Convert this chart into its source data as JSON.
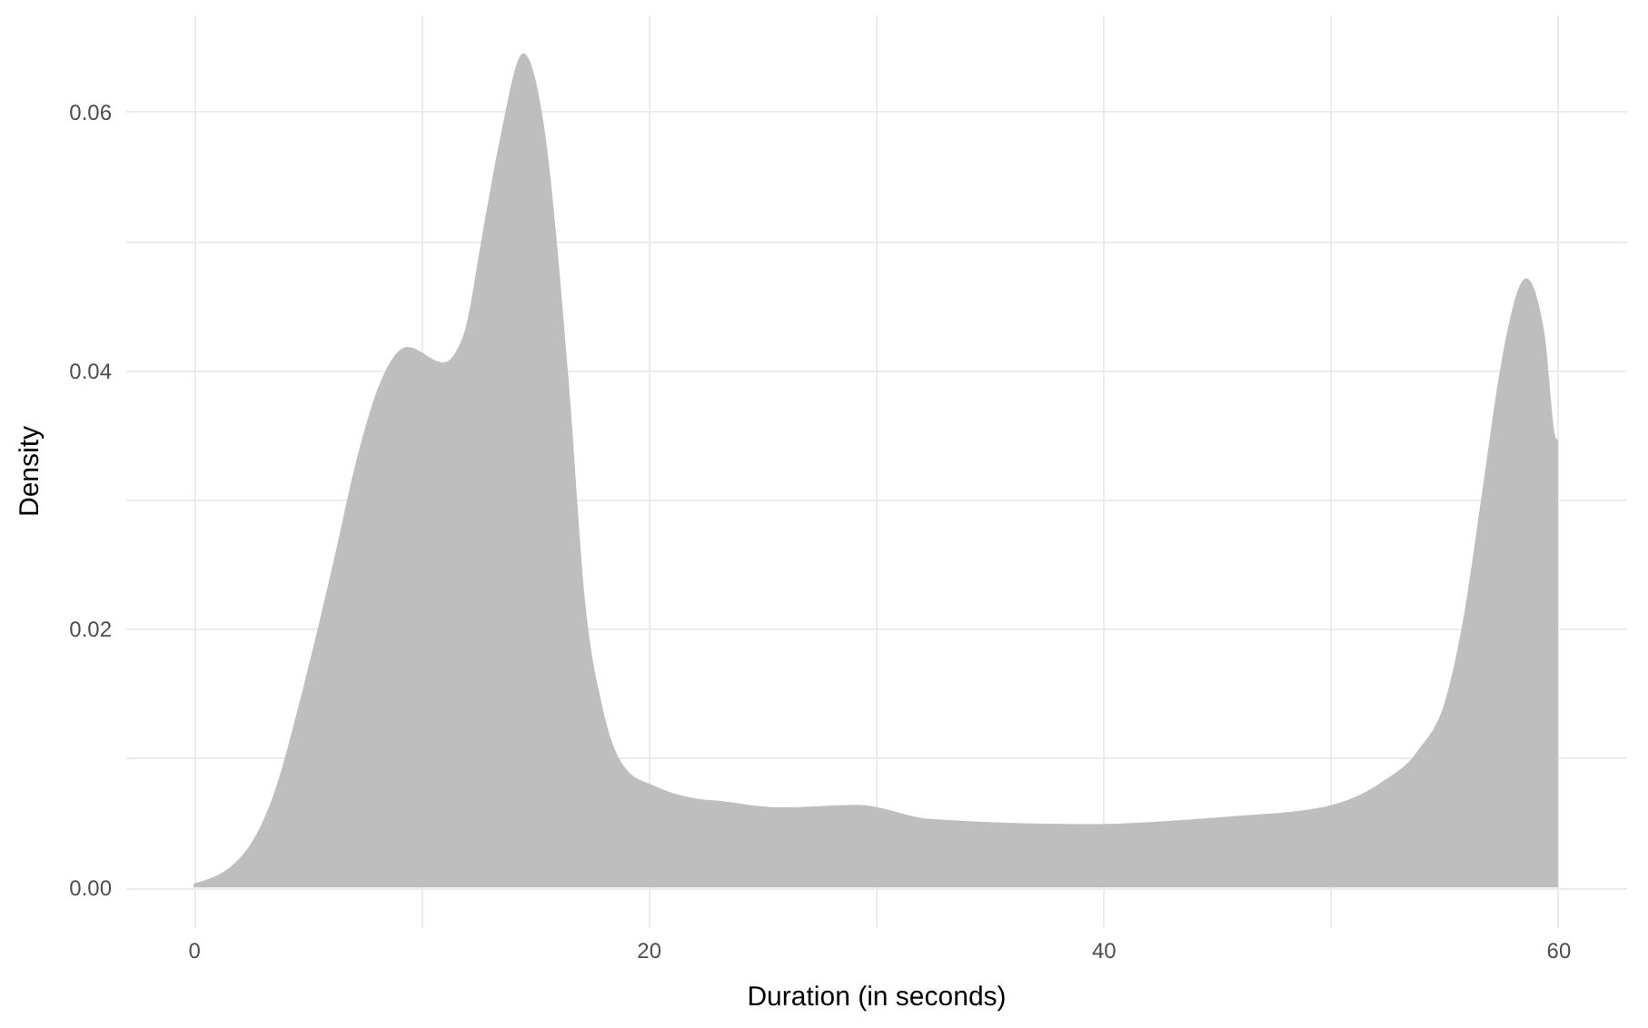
{
  "chart_data": {
    "type": "area",
    "xlabel": "Duration (in seconds)",
    "ylabel": "Density",
    "x": [
      0,
      2.1,
      3.5,
      4.8,
      6.1,
      7.2,
      8.2,
      9.4,
      11.0,
      11.9,
      12.7,
      13.5,
      14.5,
      15.4,
      16.5,
      17.2,
      18.0,
      19.1,
      20.2,
      22.0,
      23.1,
      25.7,
      29.2,
      32.4,
      39.0,
      45.6,
      49.6,
      52.2,
      53.8,
      55.1,
      55.9,
      56.7,
      57.5,
      58.6,
      59.4,
      59.9,
      60
    ],
    "series": [
      {
        "color": "#bebebe",
        "values": [
          0.0003,
          0.0024,
          0.0071,
          0.0153,
          0.0248,
          0.0333,
          0.039,
          0.0418,
          0.0406,
          0.0429,
          0.0505,
          0.0581,
          0.0645,
          0.059,
          0.039,
          0.0224,
          0.0138,
          0.009,
          0.0079,
          0.0069,
          0.0067,
          0.0062,
          0.0064,
          0.0053,
          0.0049,
          0.0055,
          0.0062,
          0.0081,
          0.0105,
          0.0148,
          0.0214,
          0.031,
          0.0405,
          0.0471,
          0.0429,
          0.0348,
          0.0346
        ]
      }
    ],
    "xlim": [
      -3,
      63
    ],
    "ylim": [
      -0.003,
      0.0675
    ],
    "xticks": [
      0,
      {
        "value": 10,
        "label": null
      },
      20,
      {
        "value": 30,
        "label": null
      },
      40,
      {
        "value": 50,
        "label": null
      },
      60
    ],
    "yticks": [
      {
        "value": 0,
        "label": "0.00"
      },
      {
        "value": 0.01,
        "label": null
      },
      {
        "value": 0.02,
        "label": "0.02"
      },
      {
        "value": 0.03,
        "label": null
      },
      {
        "value": 0.04,
        "label": "0.04"
      },
      {
        "value": 0.05,
        "label": null
      },
      {
        "value": 0.06,
        "label": "0.06"
      }
    ],
    "grid": true
  }
}
